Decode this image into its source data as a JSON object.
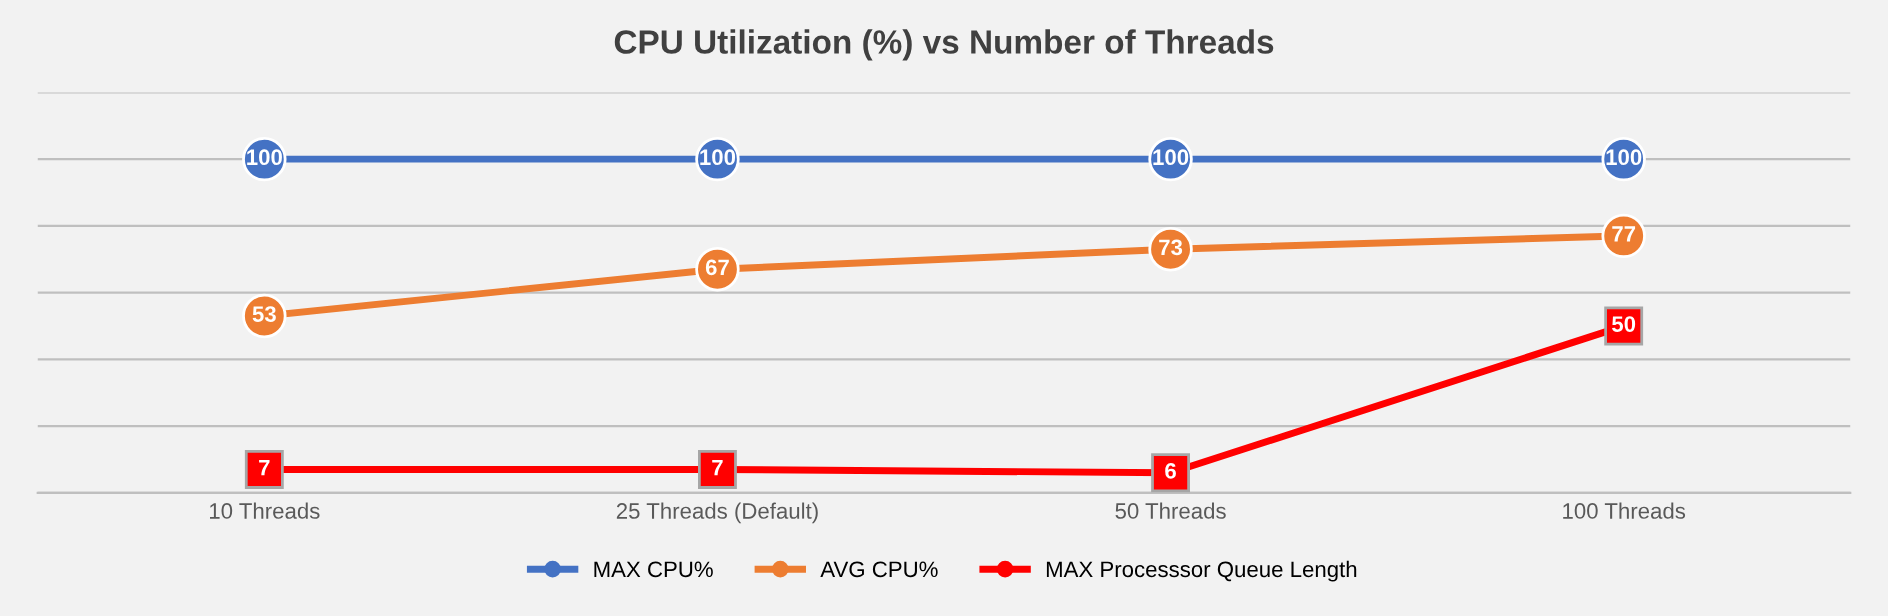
{
  "chart_data": {
    "type": "line",
    "title": "CPU Utilization (%) vs Number of Threads",
    "categories": [
      "10 Threads",
      "25 Threads (Default)",
      "50 Threads",
      "100 Threads"
    ],
    "series": [
      {
        "name": "MAX CPU%",
        "color": "#4472c4",
        "values": [
          100,
          100,
          100,
          100
        ],
        "marker": "circle"
      },
      {
        "name": "AVG CPU%",
        "color": "#ed7d31",
        "values": [
          53,
          67,
          73,
          77
        ],
        "marker": "circle"
      },
      {
        "name": "MAX Processsor Queue Length",
        "color": "#ff0000",
        "values": [
          7,
          7,
          6,
          50
        ],
        "marker": "square"
      }
    ],
    "ylim": [
      0,
      120
    ],
    "yticks": [
      {
        "value": 0,
        "label": null
      },
      {
        "value": 20,
        "label": null
      },
      {
        "value": 40,
        "label": null
      },
      {
        "value": 60,
        "label": null
      },
      {
        "value": 80,
        "label": null
      },
      {
        "value": 100,
        "label": null
      },
      {
        "value": 120,
        "label": null
      }
    ],
    "grid": "y",
    "legend": "bottom",
    "data_labels": true,
    "line_style": "solid"
  }
}
